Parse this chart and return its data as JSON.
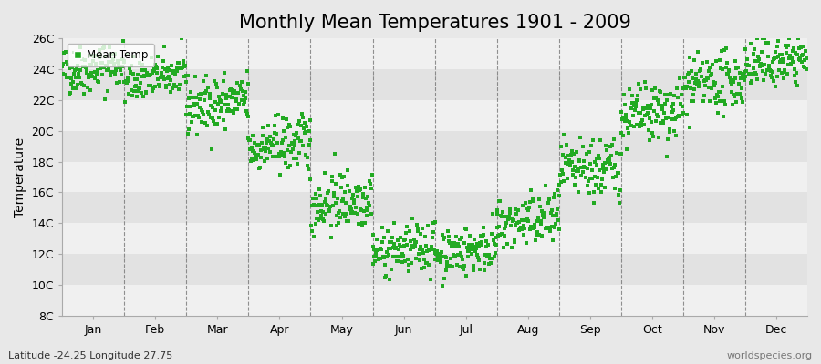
{
  "title": "Monthly Mean Temperatures 1901 - 2009",
  "ylabel": "Temperature",
  "xlabel_bottom_left": "Latitude -24.25 Longitude 27.75",
  "xlabel_bottom_right": "worldspecies.org",
  "legend_label": "Mean Temp",
  "ytick_labels": [
    "8C",
    "10C",
    "12C",
    "14C",
    "16C",
    "18C",
    "20C",
    "22C",
    "24C",
    "26C"
  ],
  "ytick_values": [
    8,
    10,
    12,
    14,
    16,
    18,
    20,
    22,
    24,
    26
  ],
  "ylim": [
    8,
    26
  ],
  "month_names": [
    "Jan",
    "Feb",
    "Mar",
    "Apr",
    "May",
    "Jun",
    "Jul",
    "Aug",
    "Sep",
    "Oct",
    "Nov",
    "Dec"
  ],
  "dot_color": "#22aa22",
  "background_color": "#e8e8e8",
  "band_colors": [
    "#f0f0f0",
    "#e2e2e2"
  ],
  "dashed_line_color": "#666666",
  "title_fontsize": 15,
  "axis_label_fontsize": 10,
  "tick_fontsize": 9,
  "monthly_means": [
    23.8,
    23.2,
    21.5,
    18.8,
    15.2,
    12.0,
    12.0,
    13.8,
    17.2,
    20.8,
    22.8,
    24.2
  ],
  "monthly_stds": [
    0.8,
    0.7,
    0.9,
    0.9,
    1.0,
    0.8,
    0.8,
    0.9,
    1.0,
    1.0,
    0.9,
    0.8
  ],
  "trend_per_year": [
    0.005,
    0.005,
    0.005,
    0.005,
    0.005,
    0.005,
    0.005,
    0.005,
    0.005,
    0.005,
    0.005,
    0.005
  ],
  "n_years": 109,
  "year_start": 1901,
  "seed": 42
}
